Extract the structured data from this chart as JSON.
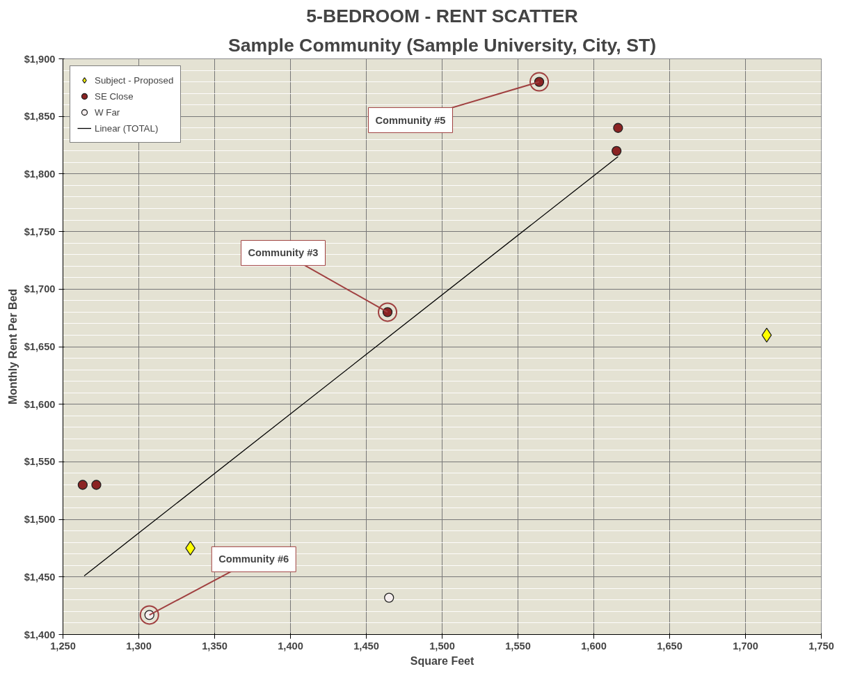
{
  "chart_data": {
    "type": "scatter",
    "title": "5-BEDROOM - RENT SCATTER",
    "subtitle": "Sample Community (Sample University, City, ST)",
    "xlabel": "Square Feet",
    "ylabel": "Monthly Rent Per Bed",
    "xlim": [
      1250,
      1750
    ],
    "ylim": [
      1400,
      1900
    ],
    "xticks": [
      {
        "value": 1250,
        "label": "1,250"
      },
      {
        "value": 1300,
        "label": "1,300"
      },
      {
        "value": 1350,
        "label": "1,350"
      },
      {
        "value": 1400,
        "label": "1,400"
      },
      {
        "value": 1450,
        "label": "1,450"
      },
      {
        "value": 1500,
        "label": "1,500"
      },
      {
        "value": 1550,
        "label": "1,550"
      },
      {
        "value": 1600,
        "label": "1,600"
      },
      {
        "value": 1650,
        "label": "1,650"
      },
      {
        "value": 1700,
        "label": "1,700"
      },
      {
        "value": 1750,
        "label": "1,750"
      }
    ],
    "yticks": [
      {
        "value": 1400,
        "label": "$1,400"
      },
      {
        "value": 1450,
        "label": "$1,450"
      },
      {
        "value": 1500,
        "label": "$1,500"
      },
      {
        "value": 1550,
        "label": "$1,550"
      },
      {
        "value": 1600,
        "label": "$1,600"
      },
      {
        "value": 1650,
        "label": "$1,650"
      },
      {
        "value": 1700,
        "label": "$1,700"
      },
      {
        "value": 1750,
        "label": "$1,750"
      },
      {
        "value": 1800,
        "label": "$1,800"
      },
      {
        "value": 1850,
        "label": "$1,850"
      },
      {
        "value": 1900,
        "label": "$1,900"
      }
    ],
    "grid": true,
    "legend": "top left",
    "series": [
      {
        "name": "Subject - Proposed",
        "color": "#ffff00",
        "marker": "diamond",
        "x": [
          1334,
          1714
        ],
        "values": [
          1475,
          1660
        ]
      },
      {
        "name": "SE Close",
        "color": "#8b2323",
        "marker": "circle",
        "x": [
          1263,
          1272,
          1464,
          1564,
          1616,
          1615
        ],
        "values": [
          1530,
          1530,
          1680,
          1880,
          1840,
          1820
        ]
      },
      {
        "name": "W Far",
        "color": "#f5eeee",
        "marker": "circle",
        "x": [
          1307,
          1465
        ],
        "values": [
          1417,
          1432
        ]
      },
      {
        "name": "Linear (TOTAL)",
        "type": "line",
        "color": "#000000",
        "x": [
          1264,
          1616
        ],
        "values": [
          1451,
          1815
        ]
      }
    ],
    "annotations": [
      {
        "text": "Community #5",
        "x": 1564,
        "y": 1880
      },
      {
        "text": "Community #3",
        "x": 1464,
        "y": 1680
      },
      {
        "text": "Community #6",
        "x": 1307,
        "y": 1417
      }
    ]
  }
}
